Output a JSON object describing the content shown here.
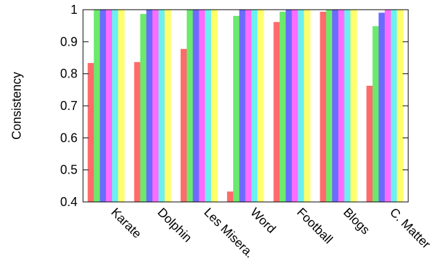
{
  "chart_data": {
    "type": "bar",
    "ylabel": "Consistency",
    "xlabel": "",
    "ylim": [
      0.4,
      1.0
    ],
    "yticks": [
      "0.4",
      "0.5",
      "0.6",
      "0.7",
      "0.8",
      "0.9",
      "1"
    ],
    "grid": false,
    "categories": [
      "Karate",
      "Dolphin",
      "Les Misera.",
      "Word",
      "Football",
      "Blogs",
      "C. Matter"
    ],
    "series": [
      {
        "color": "#ff6b6b",
        "values": [
          0.833,
          0.836,
          0.877,
          0.432,
          0.961,
          0.993,
          0.762
        ]
      },
      {
        "color": "#6bea6b",
        "values": [
          1.0,
          0.986,
          1.0,
          0.98,
          0.993,
          1.0,
          0.948
        ]
      },
      {
        "color": "#6b6bff",
        "values": [
          1.0,
          1.0,
          1.0,
          1.0,
          1.0,
          1.0,
          0.99
        ]
      },
      {
        "color": "#ff6bff",
        "values": [
          1.0,
          1.0,
          1.0,
          1.0,
          1.0,
          1.0,
          1.0
        ]
      },
      {
        "color": "#6bf0f0",
        "values": [
          1.0,
          1.0,
          1.0,
          1.0,
          1.0,
          1.0,
          1.0
        ]
      },
      {
        "color": "#ffff6b",
        "values": [
          1.0,
          1.0,
          1.0,
          1.0,
          1.0,
          1.0,
          1.0
        ]
      }
    ]
  }
}
